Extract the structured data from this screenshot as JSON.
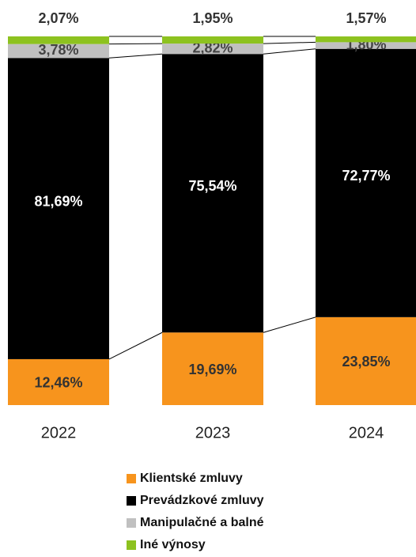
{
  "chart_data": {
    "type": "stacked_bar",
    "categories": [
      "2022",
      "2023",
      "2024"
    ],
    "ylim": [
      0,
      100
    ],
    "series": [
      {
        "name": "Klientské zmluvy",
        "color": "#f7941d",
        "values": [
          12.46,
          19.69,
          23.85
        ],
        "value_labels": [
          "12,46%",
          "19,69%",
          "23,85%"
        ]
      },
      {
        "name": "Prevádzkové zmluvy",
        "color": "#000000",
        "values": [
          81.69,
          75.54,
          72.77
        ],
        "value_labels": [
          "81,69%",
          "75,54%",
          "72,77%"
        ]
      },
      {
        "name": "Manipulačné a balné",
        "color": "#c0c0c0",
        "values": [
          3.78,
          2.82,
          1.8
        ],
        "value_labels": [
          "3,78%",
          "2,82%",
          "1,80%"
        ]
      },
      {
        "name": "Iné výnosy",
        "color": "#8dc21f",
        "values": [
          2.07,
          1.95,
          1.57
        ],
        "value_labels": [
          "2,07%",
          "1,95%",
          "1,57%"
        ]
      }
    ]
  }
}
